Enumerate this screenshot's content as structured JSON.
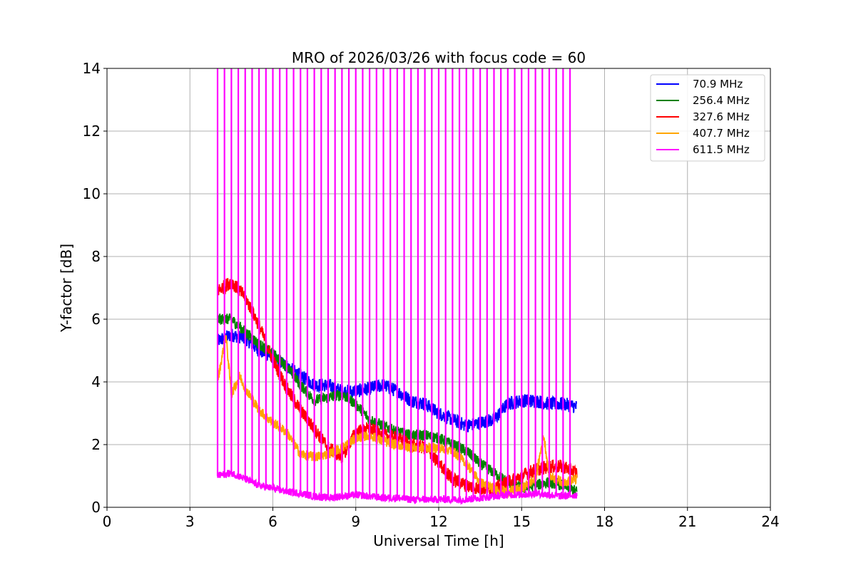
{
  "chart_data": {
    "type": "line",
    "title": "MRO of 2026/03/26 with focus code = 60",
    "xlabel": "Universal Time [h]",
    "ylabel": "Y-factor [dB]",
    "xlim": [
      0,
      24
    ],
    "ylim": [
      0,
      14
    ],
    "xticks": [
      "0",
      "3",
      "6",
      "9",
      "12",
      "15",
      "18",
      "21",
      "24"
    ],
    "yticks": [
      "0",
      "2",
      "4",
      "6",
      "8",
      "10",
      "12",
      "14"
    ],
    "grid": true,
    "legend_position": "top-right",
    "series": [
      {
        "name": " 70.9 MHz",
        "color": "#0000ff",
        "x": [
          4.0,
          4.5,
          5.0,
          5.5,
          6.0,
          6.5,
          7.0,
          7.5,
          8.0,
          8.5,
          9.0,
          9.5,
          10.0,
          10.5,
          11.0,
          11.5,
          12.0,
          12.5,
          13.0,
          13.5,
          14.0,
          14.5,
          15.0,
          15.5,
          16.0,
          16.5,
          17.0
        ],
        "y": [
          5.3,
          5.5,
          5.4,
          5.0,
          4.8,
          4.5,
          4.2,
          3.9,
          3.9,
          3.7,
          3.7,
          3.8,
          3.9,
          3.7,
          3.4,
          3.3,
          3.0,
          2.8,
          2.6,
          2.7,
          2.8,
          3.3,
          3.4,
          3.4,
          3.3,
          3.3,
          3.2
        ]
      },
      {
        "name": "256.4 MHz",
        "color": "#008000",
        "x": [
          4.0,
          4.5,
          5.0,
          5.5,
          6.0,
          6.5,
          7.0,
          7.5,
          8.0,
          8.5,
          9.0,
          9.5,
          10.0,
          10.5,
          11.0,
          11.5,
          12.0,
          12.5,
          13.0,
          13.5,
          14.0,
          14.5,
          15.0,
          15.5,
          16.0,
          16.5,
          17.0
        ],
        "y": [
          6.0,
          6.0,
          5.6,
          5.2,
          4.9,
          4.5,
          3.9,
          3.4,
          3.5,
          3.6,
          3.3,
          2.8,
          2.6,
          2.4,
          2.3,
          2.3,
          2.2,
          2.0,
          1.8,
          1.4,
          1.1,
          0.8,
          0.6,
          0.7,
          0.8,
          0.7,
          0.5
        ]
      },
      {
        "name": "327.6 MHz",
        "color": "#ff0000",
        "x": [
          4.0,
          4.5,
          5.0,
          5.5,
          6.0,
          6.5,
          7.0,
          7.5,
          8.0,
          8.5,
          9.0,
          9.5,
          10.0,
          10.5,
          11.0,
          11.5,
          12.0,
          12.5,
          13.0,
          13.5,
          14.0,
          14.5,
          15.0,
          15.5,
          16.0,
          16.5,
          17.0
        ],
        "y": [
          6.9,
          7.2,
          6.7,
          5.8,
          4.7,
          3.8,
          3.1,
          2.5,
          1.9,
          1.6,
          2.4,
          2.5,
          2.3,
          2.2,
          2.0,
          1.9,
          1.4,
          0.9,
          0.7,
          0.6,
          0.6,
          0.8,
          1.0,
          1.2,
          1.3,
          1.3,
          1.1
        ]
      },
      {
        "name": "407.7 MHz",
        "color": "#ffa500",
        "x": [
          4.0,
          4.3,
          4.5,
          4.8,
          5.0,
          5.5,
          6.0,
          6.5,
          7.0,
          7.5,
          8.0,
          8.5,
          9.0,
          9.5,
          10.0,
          10.5,
          11.0,
          11.5,
          12.0,
          12.5,
          13.0,
          13.5,
          14.0,
          14.5,
          15.0,
          15.5,
          15.8,
          16.0,
          16.5,
          17.0
        ],
        "y": [
          4.0,
          5.5,
          3.6,
          4.2,
          3.8,
          3.1,
          2.7,
          2.4,
          1.7,
          1.6,
          1.7,
          1.9,
          2.2,
          2.3,
          2.1,
          2.0,
          1.9,
          1.9,
          1.9,
          1.8,
          1.4,
          0.8,
          0.6,
          0.5,
          0.6,
          0.9,
          2.3,
          1.0,
          0.8,
          0.9
        ]
      },
      {
        "name": "611.5 MHz",
        "color": "#ff00ff",
        "x": [
          4.0,
          4.5,
          5.0,
          5.5,
          6.0,
          6.5,
          7.0,
          7.5,
          8.0,
          8.5,
          9.0,
          9.5,
          10.0,
          10.5,
          11.0,
          11.5,
          12.0,
          12.5,
          13.0,
          13.5,
          14.0,
          14.5,
          15.0,
          15.5,
          16.0,
          16.5,
          17.0
        ],
        "y": [
          1.0,
          1.1,
          0.9,
          0.7,
          0.6,
          0.5,
          0.45,
          0.35,
          0.3,
          0.35,
          0.4,
          0.35,
          0.3,
          0.3,
          0.25,
          0.25,
          0.25,
          0.25,
          0.25,
          0.3,
          0.35,
          0.4,
          0.4,
          0.45,
          0.4,
          0.35,
          0.4
        ],
        "spike_times": [
          4.0,
          4.25,
          4.5,
          4.75,
          5.0,
          5.25,
          5.5,
          5.75,
          6.0,
          6.25,
          6.5,
          6.75,
          7.0,
          7.25,
          7.5,
          7.75,
          8.0,
          8.25,
          8.5,
          8.75,
          9.0,
          9.25,
          9.5,
          9.75,
          10.0,
          10.25,
          10.5,
          10.75,
          11.0,
          11.25,
          11.5,
          11.75,
          12.0,
          12.25,
          12.5,
          12.75,
          13.0,
          13.25,
          13.5,
          13.75,
          14.0,
          14.25,
          14.5,
          14.75,
          15.0,
          15.25,
          15.5,
          15.75,
          16.0,
          16.25,
          16.5,
          16.75
        ],
        "spike_top": 14
      }
    ]
  }
}
